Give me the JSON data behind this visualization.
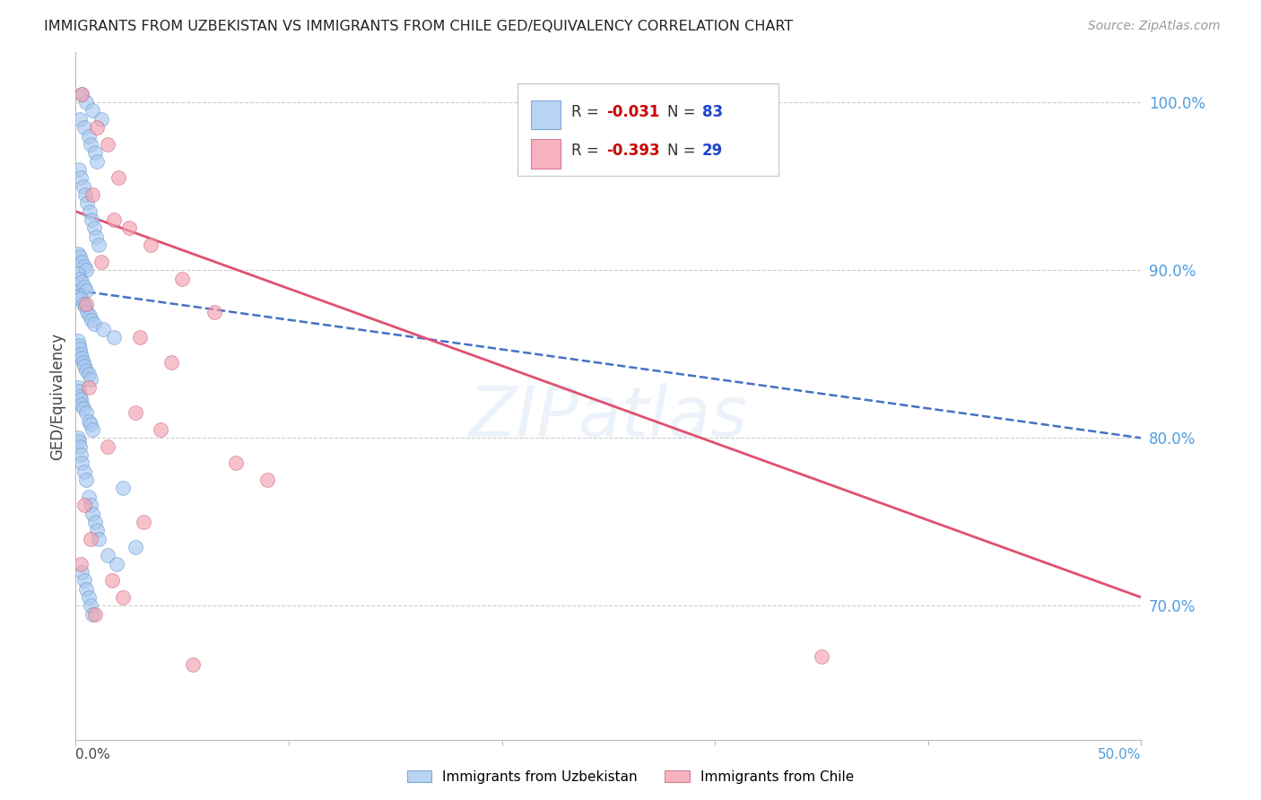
{
  "title": "IMMIGRANTS FROM UZBEKISTAN VS IMMIGRANTS FROM CHILE GED/EQUIVALENCY CORRELATION CHART",
  "source": "Source: ZipAtlas.com",
  "ylabel": "GED/Equivalency",
  "y_ticks": [
    70.0,
    80.0,
    90.0,
    100.0
  ],
  "x_min": 0.0,
  "x_max": 50.0,
  "y_min": 62.0,
  "y_max": 103.0,
  "uzbekistan_color": "#a8c8f0",
  "uzbekistan_edge": "#6699cc",
  "chile_color": "#f4a0b0",
  "chile_edge": "#cc6680",
  "trendline_uzb_color": "#4472c4",
  "trendline_chile_color": "#e05070",
  "legend_r_color": "#cc0000",
  "legend_n_color": "#2244cc",
  "right_tick_color": "#4d9de0",
  "grid_color": "#cccccc",
  "uzbekistan_scatter_x": [
    0.3,
    0.5,
    0.8,
    1.2,
    0.2,
    0.4,
    0.6,
    0.7,
    0.9,
    1.0,
    0.15,
    0.25,
    0.35,
    0.45,
    0.55,
    0.65,
    0.75,
    0.85,
    0.95,
    1.1,
    0.1,
    0.2,
    0.3,
    0.4,
    0.5,
    0.1,
    0.2,
    0.3,
    0.4,
    0.5,
    0.15,
    0.25,
    0.35,
    0.45,
    0.55,
    0.65,
    0.75,
    0.85,
    1.3,
    1.8,
    0.1,
    0.15,
    0.2,
    0.25,
    0.3,
    0.35,
    0.4,
    0.5,
    0.6,
    0.7,
    0.1,
    0.15,
    0.2,
    0.25,
    0.3,
    0.35,
    0.5,
    0.6,
    0.7,
    0.8,
    0.1,
    0.15,
    0.2,
    0.25,
    0.3,
    0.4,
    0.5,
    2.2,
    0.6,
    0.7,
    0.8,
    0.9,
    1.0,
    1.1,
    2.8,
    1.5,
    1.9,
    0.3,
    0.4,
    0.5,
    0.6,
    0.7,
    0.8
  ],
  "uzbekistan_scatter_y": [
    100.5,
    100.0,
    99.5,
    99.0,
    99.0,
    98.5,
    98.0,
    97.5,
    97.0,
    96.5,
    96.0,
    95.5,
    95.0,
    94.5,
    94.0,
    93.5,
    93.0,
    92.5,
    92.0,
    91.5,
    91.0,
    90.8,
    90.5,
    90.2,
    90.0,
    89.8,
    89.5,
    89.3,
    89.0,
    88.8,
    88.5,
    88.3,
    88.0,
    87.8,
    87.5,
    87.3,
    87.0,
    86.8,
    86.5,
    86.0,
    85.8,
    85.5,
    85.3,
    85.0,
    84.8,
    84.5,
    84.3,
    84.0,
    83.8,
    83.5,
    83.0,
    82.8,
    82.5,
    82.3,
    82.0,
    81.8,
    81.5,
    81.0,
    80.8,
    80.5,
    80.0,
    79.8,
    79.5,
    79.0,
    78.5,
    78.0,
    77.5,
    77.0,
    76.5,
    76.0,
    75.5,
    75.0,
    74.5,
    74.0,
    73.5,
    73.0,
    72.5,
    72.0,
    71.5,
    71.0,
    70.5,
    70.0,
    69.5
  ],
  "chile_scatter_x": [
    0.3,
    1.0,
    1.5,
    2.0,
    0.8,
    1.8,
    2.5,
    3.5,
    1.2,
    5.0,
    0.5,
    6.5,
    3.0,
    4.5,
    0.6,
    2.8,
    4.0,
    1.5,
    7.5,
    9.0,
    0.4,
    3.2,
    0.7,
    35.0,
    0.25,
    1.7,
    2.2,
    5.5,
    0.9
  ],
  "chile_scatter_y": [
    100.5,
    98.5,
    97.5,
    95.5,
    94.5,
    93.0,
    92.5,
    91.5,
    90.5,
    89.5,
    88.0,
    87.5,
    86.0,
    84.5,
    83.0,
    81.5,
    80.5,
    79.5,
    78.5,
    77.5,
    76.0,
    75.0,
    74.0,
    67.0,
    72.5,
    71.5,
    70.5,
    66.5,
    69.5
  ],
  "uzb_trend_x0": 0.0,
  "uzb_trend_y0": 88.8,
  "uzb_trend_x1": 50.0,
  "uzb_trend_y1": 80.0,
  "chile_trend_x0": 0.0,
  "chile_trend_y0": 93.5,
  "chile_trend_x1": 50.0,
  "chile_trend_y1": 70.5
}
